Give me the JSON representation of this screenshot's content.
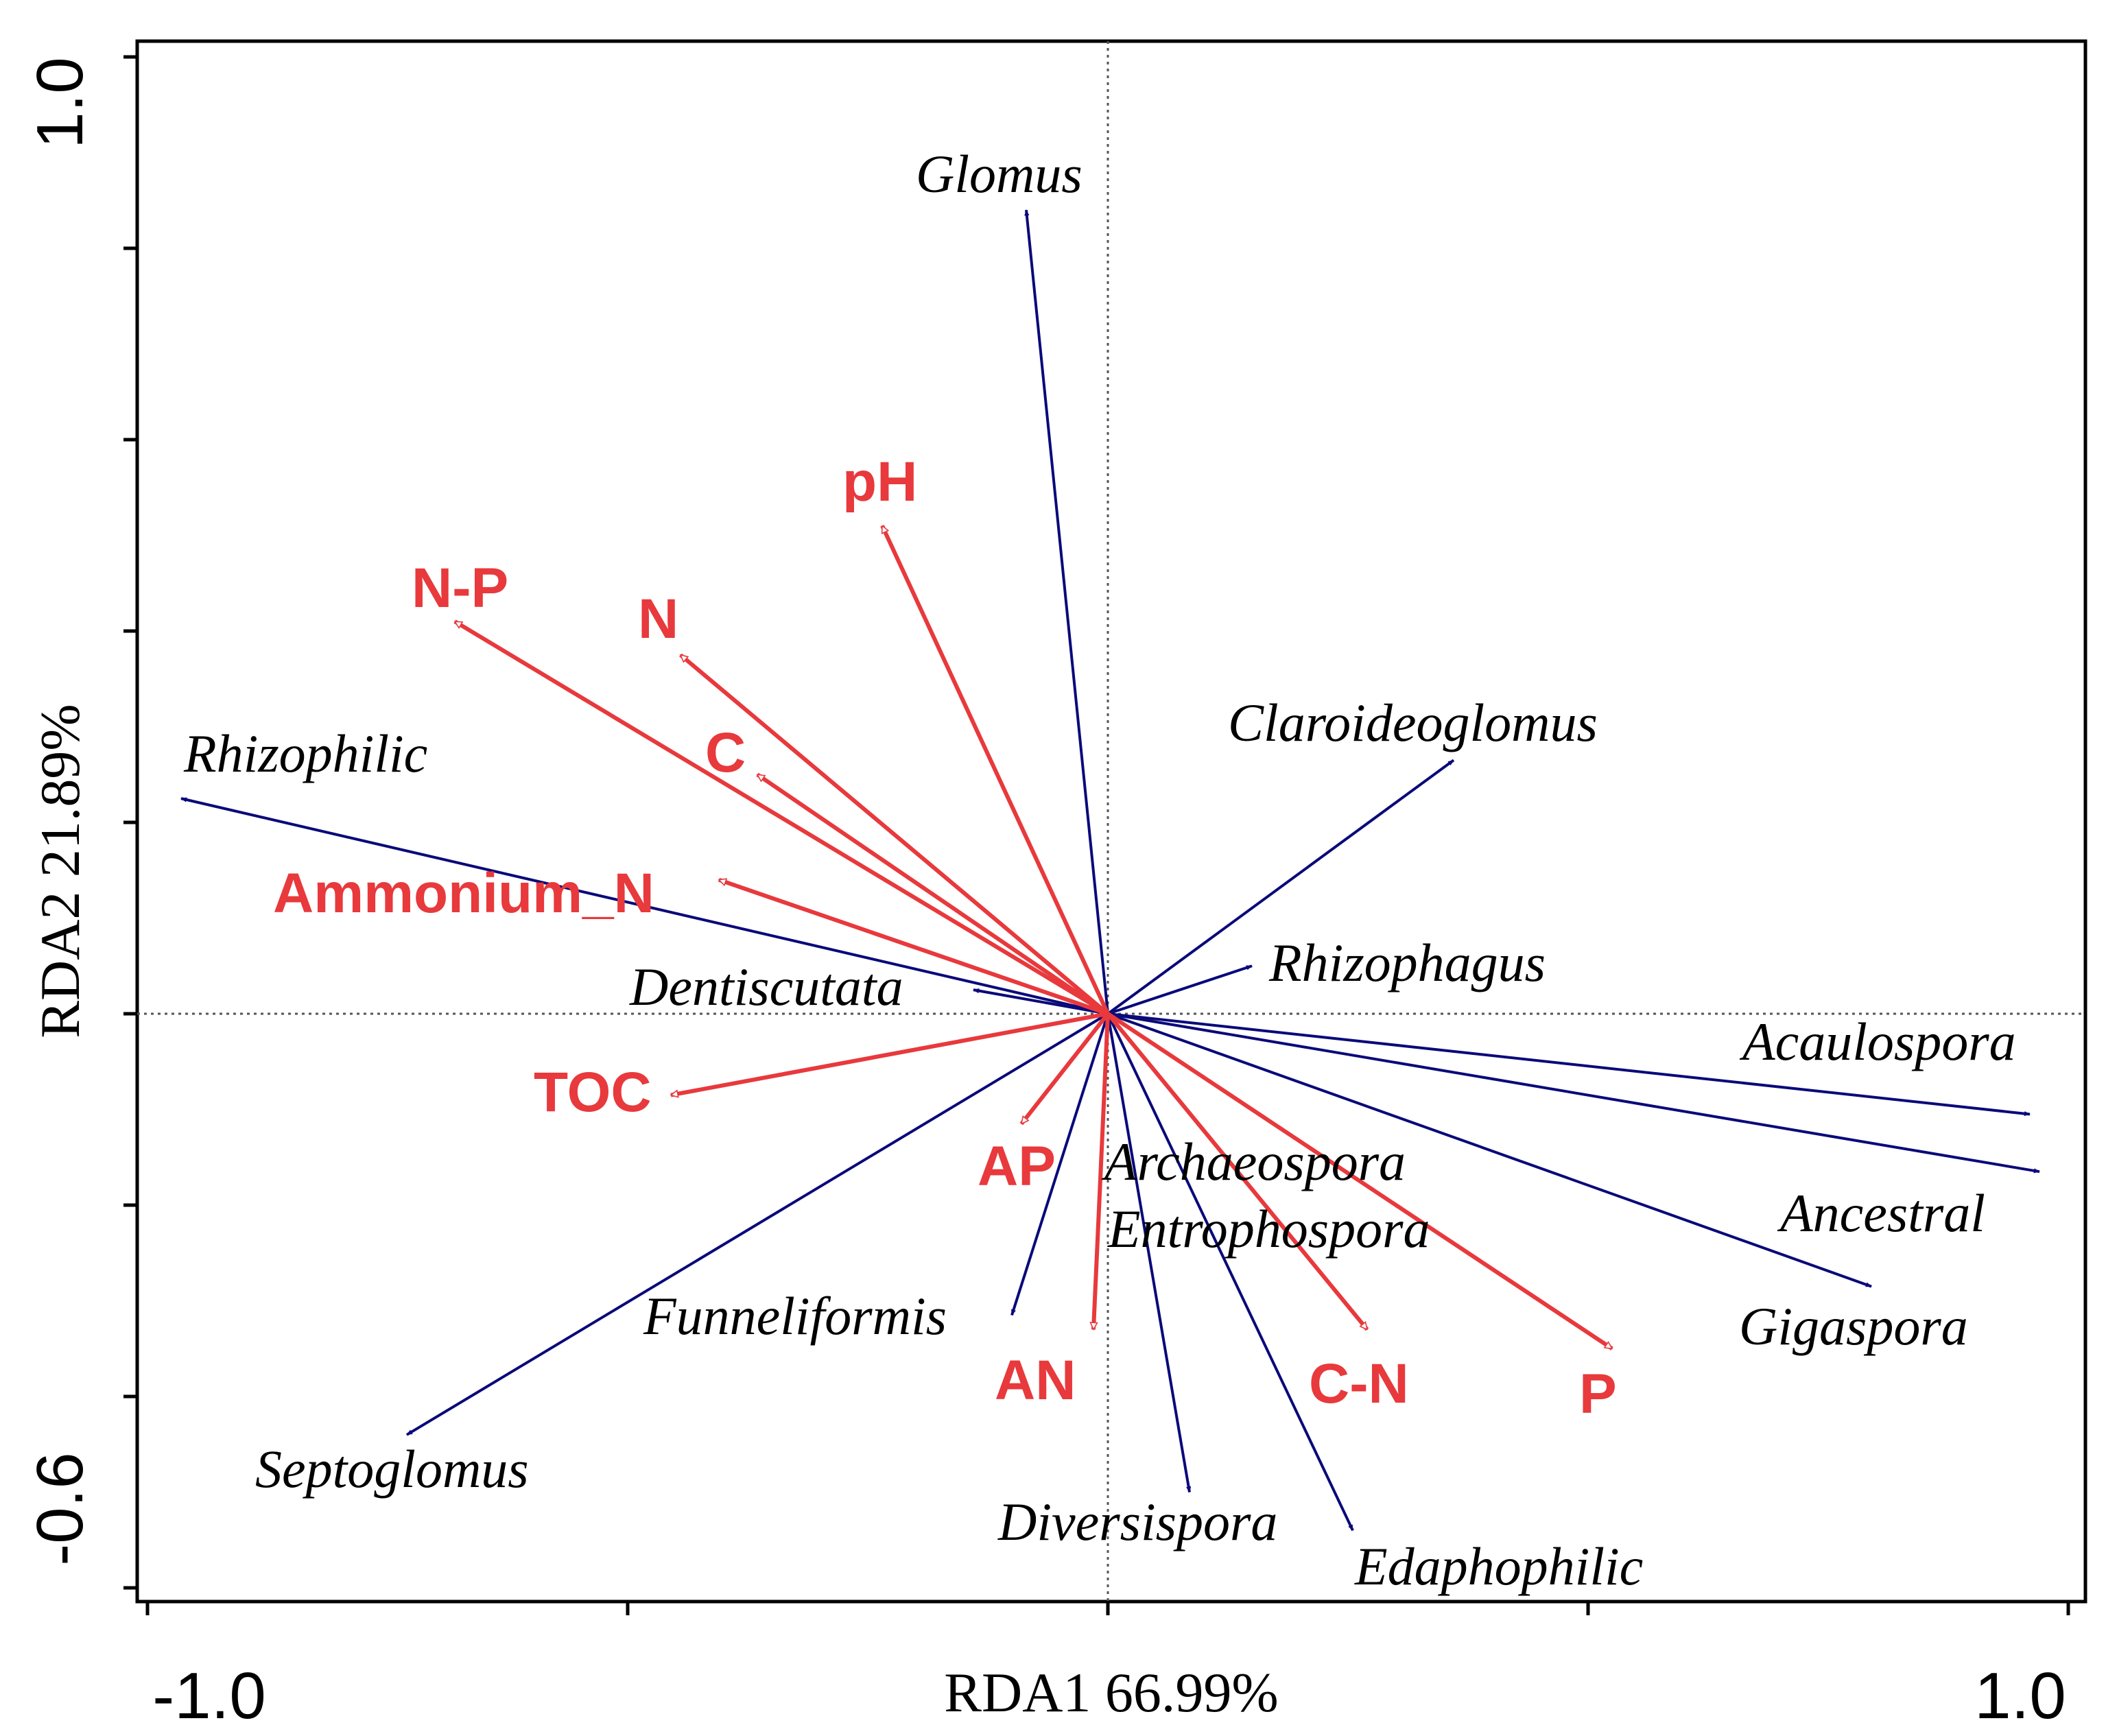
{
  "colors": {
    "species": "#0a0a7a",
    "environment": "#e8393c",
    "axis": "#000000",
    "origin_lines": "#555555"
  },
  "chart_data": {
    "type": "biplot",
    "title": "",
    "xlabel": "RDA1  66.99%",
    "ylabel": "RDA2  21.89%",
    "xlim": [
      -1.06,
      1.0
    ],
    "ylim": [
      -0.63,
      1.02
    ],
    "x_tick_labels": [
      {
        "value": -1.0,
        "label": "-1.0"
      },
      {
        "value": 1.0,
        "label": "1.0"
      }
    ],
    "y_tick_labels": [
      {
        "value": 1.0,
        "label": "1.0"
      },
      {
        "value": -0.6,
        "label": "-0.6"
      }
    ],
    "x_ticks": [
      -1.0,
      -0.5,
      0.0,
      0.5,
      1.0
    ],
    "y_ticks": [
      1.0,
      0.8,
      0.6,
      0.4,
      0.2,
      0.0,
      -0.2,
      -0.4,
      -0.6
    ],
    "species_arrows": [
      {
        "name": "Glomus",
        "x": -0.085,
        "y": 0.84
      },
      {
        "name": "Claroideoglomus",
        "x": 0.36,
        "y": 0.265
      },
      {
        "name": "Rhizophagus",
        "x": 0.15,
        "y": 0.05
      },
      {
        "name": "Rhizophilic",
        "x": -0.965,
        "y": 0.225
      },
      {
        "name": "Dentiscutata",
        "x": -0.14,
        "y": 0.025
      },
      {
        "name": "Acaulospora",
        "x": 0.96,
        "y": -0.105
      },
      {
        "name": "Ancestral",
        "x": 0.97,
        "y": -0.165
      },
      {
        "name": "Gigaspora",
        "x": 0.795,
        "y": -0.285
      },
      {
        "name": "Archaeospora",
        "x": 0.0,
        "y": 0.0
      },
      {
        "name": "Entrophospora",
        "x": 0.0,
        "y": 0.0
      },
      {
        "name": "Funneliformis",
        "x": -0.1,
        "y": -0.315
      },
      {
        "name": "Septoglomus",
        "x": -0.73,
        "y": -0.44
      },
      {
        "name": "Diversispora",
        "x": 0.085,
        "y": -0.5
      },
      {
        "name": "Edaphophilic",
        "x": 0.255,
        "y": -0.54
      }
    ],
    "environment_arrows": [
      {
        "name": "pH",
        "x": -0.235,
        "y": 0.51
      },
      {
        "name": "N-P",
        "x": -0.68,
        "y": 0.41
      },
      {
        "name": "N",
        "x": -0.445,
        "y": 0.375
      },
      {
        "name": "C",
        "x": -0.365,
        "y": 0.25
      },
      {
        "name": "Ammonium_N",
        "x": -0.405,
        "y": 0.14
      },
      {
        "name": "TOC",
        "x": -0.455,
        "y": -0.085
      },
      {
        "name": "AP",
        "x": -0.09,
        "y": -0.115
      },
      {
        "name": "AN",
        "x": -0.015,
        "y": -0.33
      },
      {
        "name": "C-N",
        "x": 0.27,
        "y": -0.33
      },
      {
        "name": "P",
        "x": 0.525,
        "y": -0.35
      }
    ]
  }
}
